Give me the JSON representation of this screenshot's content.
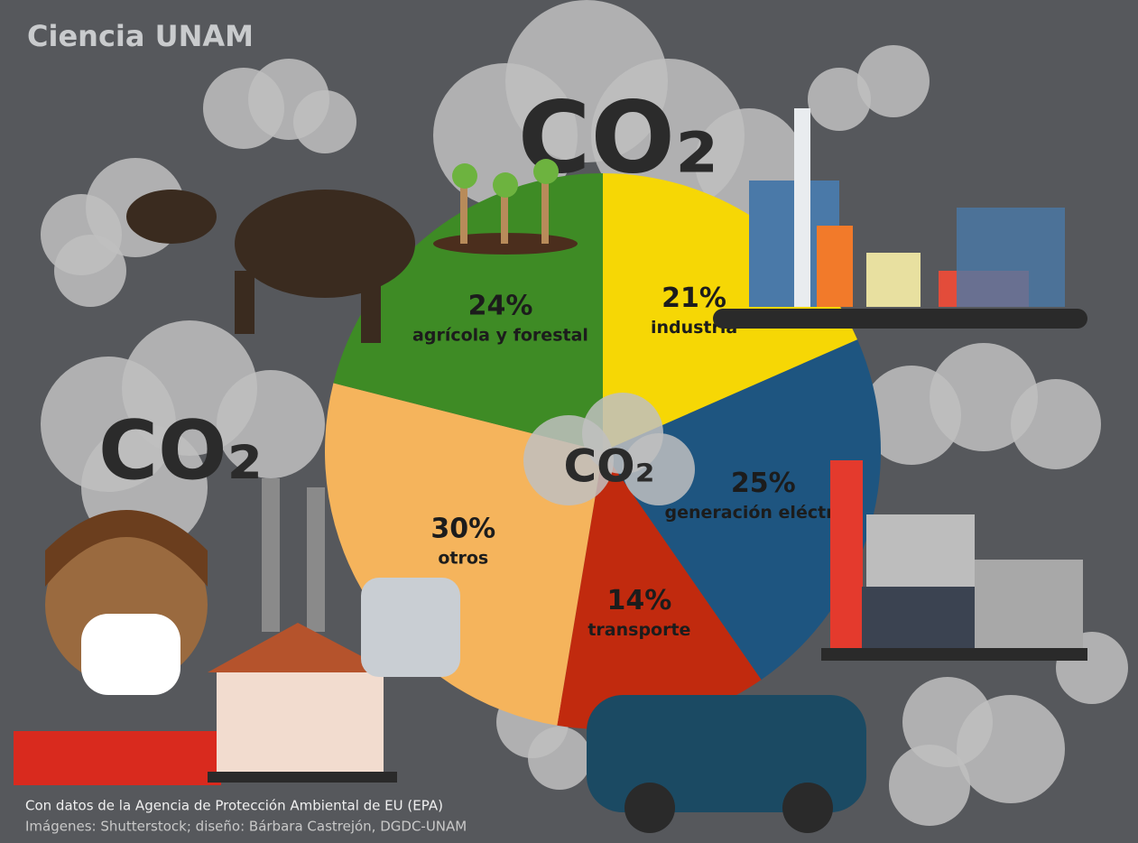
{
  "logo": "Ciencia UNAM",
  "co2_labels": [
    "CO₂",
    "CO₂",
    "CO₂"
  ],
  "credits": {
    "source": "Con datos de la Agencia de Protección Ambiental de EU (EPA)",
    "images": "Imágenes: Shutterstock; diseño: Bárbara Castrejón, DGDC-UNAM"
  },
  "chart_data": {
    "type": "pie",
    "categories": [
      "industria",
      "generación eléctrica",
      "transporte",
      "otros",
      "agrícola y forestal"
    ],
    "values": [
      21,
      25,
      14,
      30,
      24
    ],
    "value_labels": [
      "21%",
      "25%",
      "14%",
      "30%",
      "24%"
    ],
    "colors": [
      "#f6d705",
      "#1e5580",
      "#c12a0e",
      "#f5b45c",
      "#3e8b25"
    ]
  }
}
